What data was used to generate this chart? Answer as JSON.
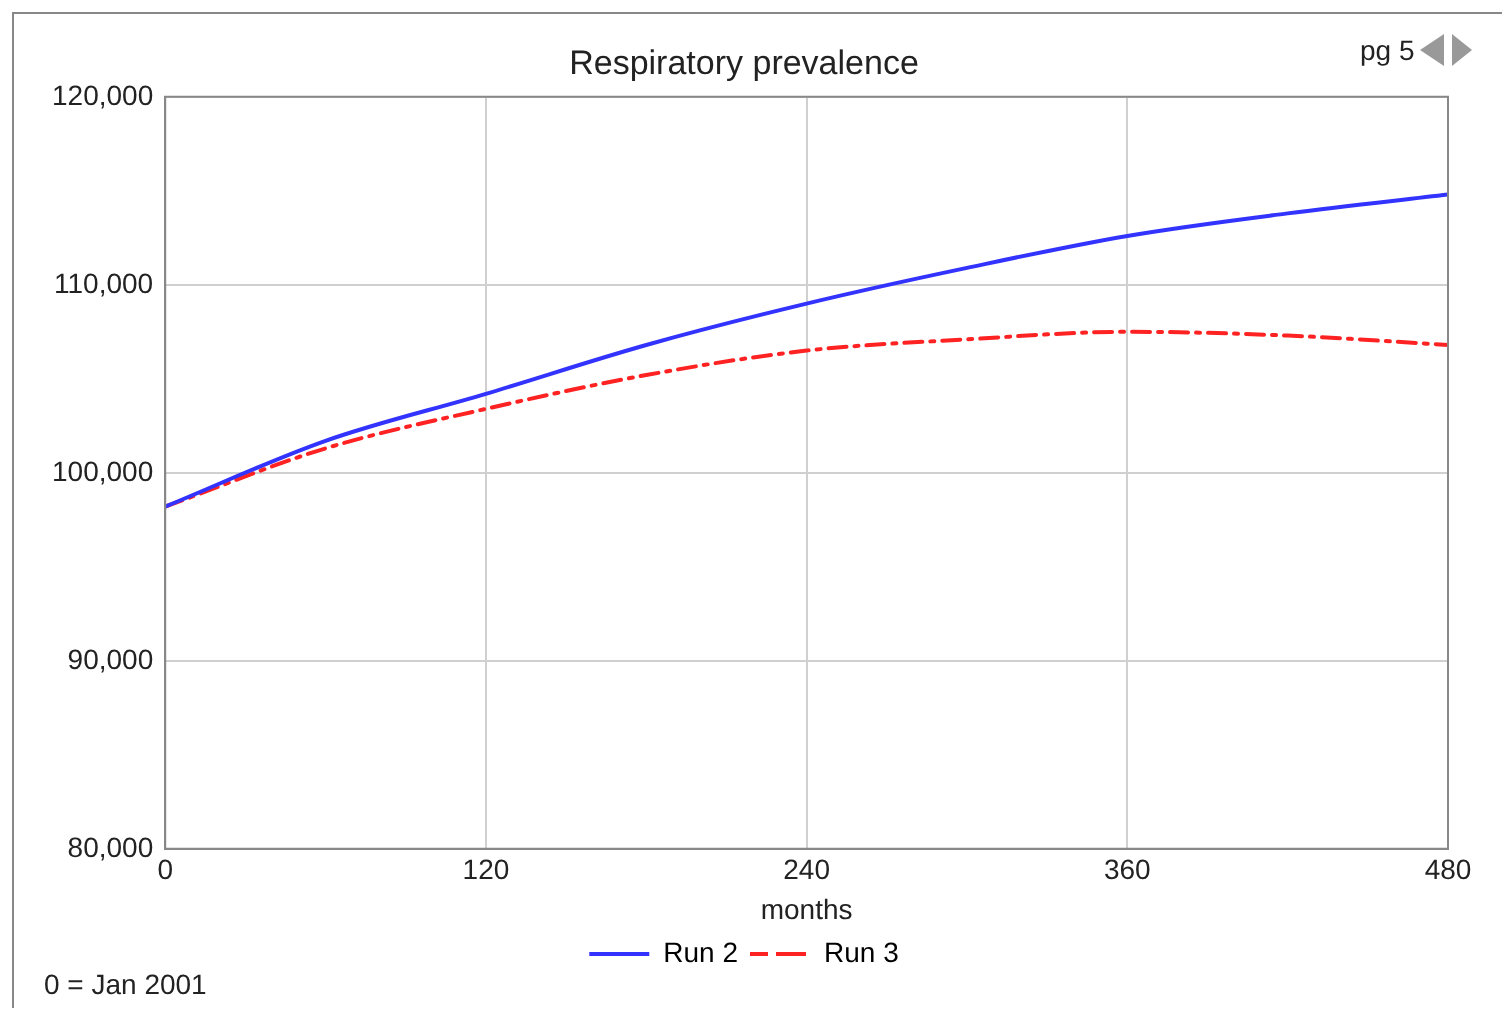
{
  "chart_data": {
    "type": "line",
    "title": "Respiratory prevalence",
    "xlabel": "months",
    "annotations": [
      "0 = Jan 2001",
      "pg 5"
    ],
    "xlim": [
      0,
      480
    ],
    "xticks": [
      0,
      120,
      240,
      360,
      480
    ],
    "ylim": [
      80000,
      120000
    ],
    "yticks": [
      {
        "value": 80000,
        "label": "80,000"
      },
      {
        "value": 90000,
        "label": "90,000"
      },
      {
        "value": 100000,
        "label": "100,000"
      },
      {
        "value": 110000,
        "label": "110,000"
      },
      {
        "value": 120000,
        "label": "120,000"
      }
    ],
    "grid": true,
    "legend": "bottom",
    "marker": "none",
    "x": [
      0,
      60,
      120,
      180,
      240,
      300,
      360,
      420,
      480
    ],
    "series": [
      {
        "name": "Run 2",
        "color": "#3333ff",
        "line_style": "solid",
        "values": [
          98200,
          101700,
          104200,
          106800,
          109000,
          110900,
          112600,
          113800,
          114800
        ]
      },
      {
        "name": "Run 3",
        "color": "#ff2222",
        "line_style": "dashed",
        "values": [
          98200,
          101300,
          103400,
          105200,
          106500,
          107100,
          107500,
          107300,
          106800
        ]
      }
    ]
  }
}
